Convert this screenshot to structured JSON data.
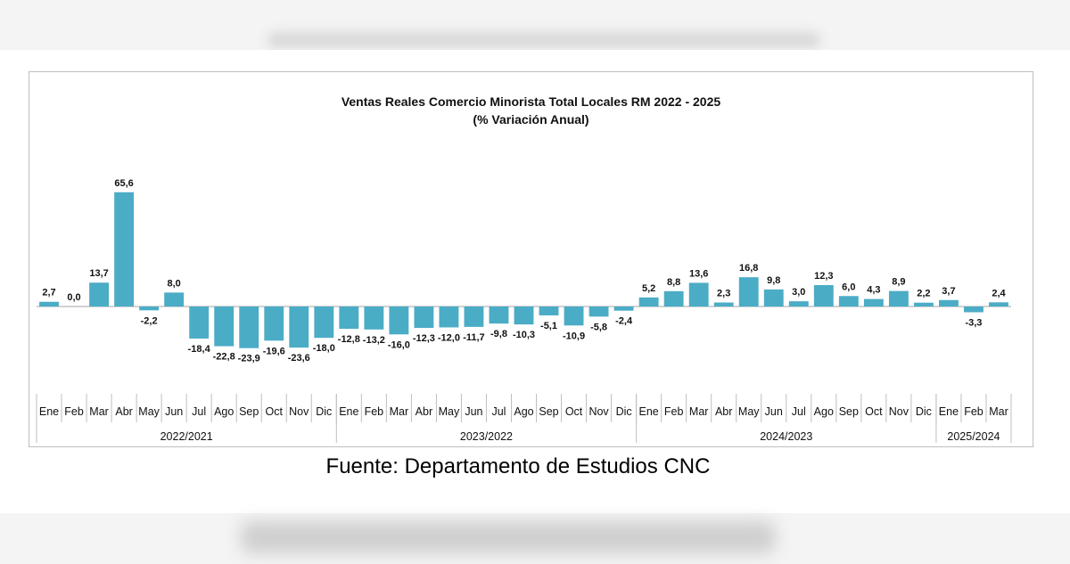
{
  "caption": "Fuente: Departamento de Estudios CNC",
  "chart_data": {
    "type": "bar",
    "title": "Ventas Reales Comercio Minorista  Total Locales RM 2022 - 2025",
    "subtitle": "(% Variación Anual)",
    "color": "#4bacc6",
    "grid": false,
    "legend": "none",
    "ylim": [
      -30,
      70
    ],
    "categories": [
      "Ene",
      "Feb",
      "Mar",
      "Abr",
      "May",
      "Jun",
      "Jul",
      "Ago",
      "Sep",
      "Oct",
      "Nov",
      "Dic",
      "Ene",
      "Feb",
      "Mar",
      "Abr",
      "May",
      "Jun",
      "Jul",
      "Ago",
      "Sep",
      "Oct",
      "Nov",
      "Dic",
      "Ene",
      "Feb",
      "Mar",
      "Abr",
      "May",
      "Jun",
      "Jul",
      "Ago",
      "Sep",
      "Oct",
      "Nov",
      "Dic",
      "Ene",
      "Feb",
      "Mar"
    ],
    "values": [
      2.7,
      0.0,
      13.7,
      65.6,
      -2.2,
      8.0,
      -18.4,
      -22.8,
      -23.9,
      -19.6,
      -23.6,
      -18.0,
      -12.8,
      -13.2,
      -16.0,
      -12.3,
      -12.0,
      -11.7,
      -9.8,
      -10.3,
      -5.1,
      -10.9,
      -5.8,
      -2.4,
      5.2,
      8.8,
      13.6,
      2.3,
      16.8,
      9.8,
      3.0,
      12.3,
      6.0,
      4.3,
      8.9,
      2.2,
      3.7,
      -3.3,
      2.4
    ],
    "labels": [
      "2,7",
      "0,0",
      "13,7",
      "65,6",
      "-2,2",
      "8,0",
      "-18,4",
      "-22,8",
      "-23,9",
      "-19,6",
      "-23,6",
      "-18,0",
      "-12,8",
      "-13,2",
      "-16,0",
      "-12,3",
      "-12,0",
      "-11,7",
      "-9,8",
      "-10,3",
      "-5,1",
      "-10,9",
      "-5,8",
      "-2,4",
      "5,2",
      "8,8",
      "13,6",
      "2,3",
      "16,8",
      "9,8",
      "3,0",
      "12,3",
      "6,0",
      "4,3",
      "8,9",
      "2,2",
      "3,7",
      "-3,3",
      "2,4"
    ],
    "groups": [
      {
        "label": "2022/2021",
        "count": 12
      },
      {
        "label": "2023/2022",
        "count": 12
      },
      {
        "label": "2024/2023",
        "count": 12
      },
      {
        "label": "2025/2024",
        "count": 3
      }
    ]
  }
}
